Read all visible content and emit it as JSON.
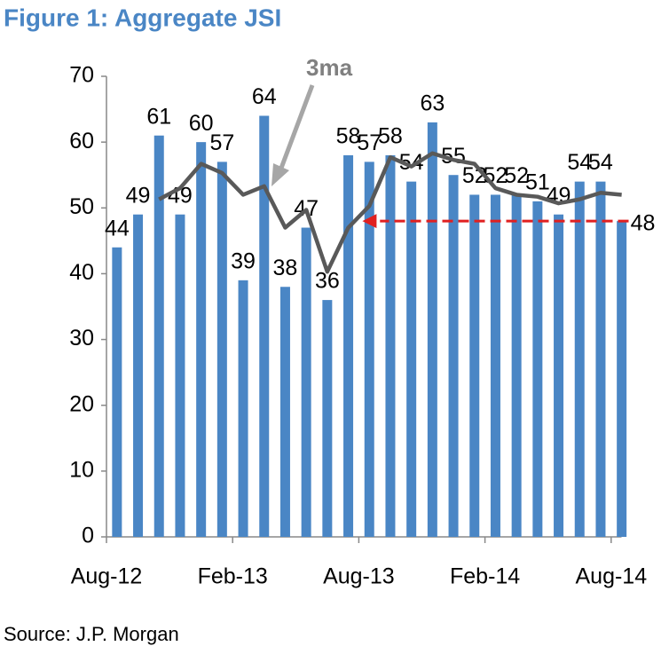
{
  "chart_data": {
    "type": "bar",
    "title": "Figure 1: Aggregate JSI",
    "source": "Source: J.P. Morgan",
    "annotation": "3ma",
    "categories": [
      "Aug-12",
      null,
      null,
      null,
      null,
      null,
      "Feb-13",
      null,
      null,
      null,
      null,
      null,
      "Aug-13",
      null,
      null,
      null,
      null,
      null,
      "Feb-14",
      null,
      null,
      null,
      null,
      null,
      "Aug-14"
    ],
    "series": [
      {
        "name": "JSI",
        "type": "bar",
        "color": "#4a86c5",
        "values": [
          44,
          49,
          61,
          49,
          60,
          57,
          39,
          64,
          38,
          47,
          36,
          58,
          57,
          58,
          54,
          63,
          55,
          52,
          52,
          52,
          51,
          49,
          54,
          54,
          48
        ]
      },
      {
        "name": "3ma",
        "type": "line",
        "color": "#595959",
        "values": [
          null,
          null,
          51.3,
          53,
          56.7,
          55.3,
          52,
          53.3,
          47,
          49.7,
          40.3,
          47,
          50.3,
          57.7,
          56.3,
          58.3,
          57.3,
          56.7,
          53,
          52,
          51.7,
          50.7,
          51.3,
          52.3,
          52
        ]
      }
    ],
    "ylim": [
      0,
      70
    ],
    "yticks": [
      0,
      10,
      20,
      30,
      40,
      50,
      60,
      70
    ]
  }
}
